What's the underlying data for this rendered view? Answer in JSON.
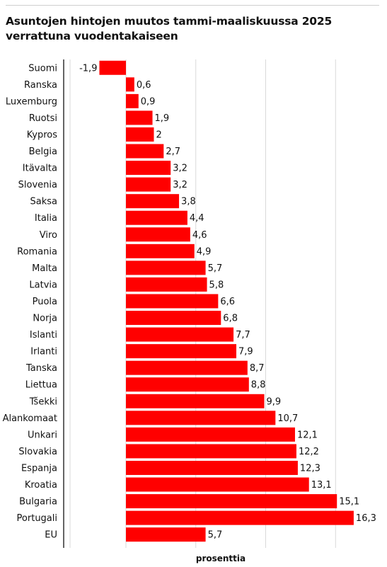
{
  "header": {
    "title": "Asuntojen hintojen muutos tammi-maaliskuussa 2025 verrattuna vuodentakaiseen"
  },
  "chart_data": {
    "type": "bar",
    "orientation": "horizontal",
    "title": "Asuntojen hintojen muutos tammi-maaliskuussa 2025 verrattuna vuodentakaiseen",
    "xlabel": "prosenttia",
    "ylabel": "",
    "categories": [
      "Suomi",
      "Ranska",
      "Luxemburg",
      "Ruotsi",
      "Kypros",
      "Belgia",
      "Itävalta",
      "Slovenia",
      "Saksa",
      "Italia",
      "Viro",
      "Romania",
      "Malta",
      "Latvia",
      "Puola",
      "Norja",
      "Islanti",
      "Irlanti",
      "Tanska",
      "Liettua",
      "Tšekki",
      "Alankomaat",
      "Unkari",
      "Slovakia",
      "Espanja",
      "Kroatia",
      "Bulgaria",
      "Portugali",
      "EU"
    ],
    "values": [
      -1.9,
      0.6,
      0.9,
      1.9,
      2,
      2.7,
      3.2,
      3.2,
      3.8,
      4.4,
      4.6,
      4.9,
      5.7,
      5.8,
      6.6,
      6.8,
      7.7,
      7.9,
      8.7,
      8.8,
      9.9,
      10.7,
      12.1,
      12.2,
      12.3,
      13.1,
      15.1,
      16.3,
      5.7
    ],
    "value_labels": [
      "-1,9",
      "0,6",
      "0,9",
      "1,9",
      "2",
      "2,7",
      "3,2",
      "3,2",
      "3,8",
      "4,4",
      "4,6",
      "4,9",
      "5,7",
      "5,8",
      "6,6",
      "6,8",
      "7,7",
      "7,9",
      "8,7",
      "8,8",
      "9,9",
      "10,7",
      "12,1",
      "12,2",
      "12,3",
      "13,1",
      "15,1",
      "16,3",
      "5,7"
    ],
    "xlim": [
      -4,
      18
    ],
    "gridlines": [
      -4,
      0,
      5,
      10,
      15
    ],
    "grid": true,
    "bar_color": "#ff0000"
  }
}
